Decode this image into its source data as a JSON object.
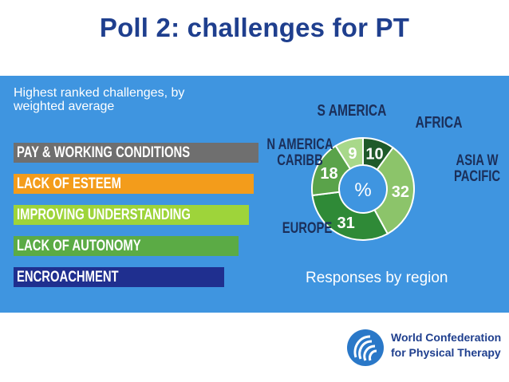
{
  "slide": {
    "title": "Poll 2: challenges for PT"
  },
  "panel": {
    "subtitle": "Highest ranked challenges, by weighted average",
    "caption": "Responses by region"
  },
  "chart_data": [
    {
      "type": "bar",
      "orientation": "horizontal",
      "categories": [
        "PAY & WORKING CONDITIONS",
        "LACK OF ESTEEM",
        "IMPROVING UNDERSTANDING",
        "LACK OF AUTONOMY",
        "ENCROACHMENT"
      ],
      "values": [
        5.0,
        4.9,
        4.8,
        4.6,
        4.3
      ],
      "value_scale": "relative (ranking by weighted average, values not printed)",
      "colors": [
        "#6f6f6f",
        "#f39c1b",
        "#9ed43a",
        "#5bab45",
        "#1f2f8f"
      ],
      "title": "Highest ranked challenges, by weighted average"
    },
    {
      "type": "pie",
      "donut": true,
      "center_label": "%",
      "categories": [
        "AFRICA",
        "ASIA W PACIFIC",
        "EUROPE",
        "N AMERICA CARIBB",
        "S AMERICA"
      ],
      "values": [
        10,
        32,
        31,
        18,
        9
      ],
      "colors": [
        "#1f5a2a",
        "#8cc46a",
        "#2f8a37",
        "#5aa34a",
        "#a8d88a"
      ],
      "title": "Responses by region"
    }
  ],
  "logo": {
    "line1": "World Confederation",
    "line2": "for Physical Therapy"
  }
}
